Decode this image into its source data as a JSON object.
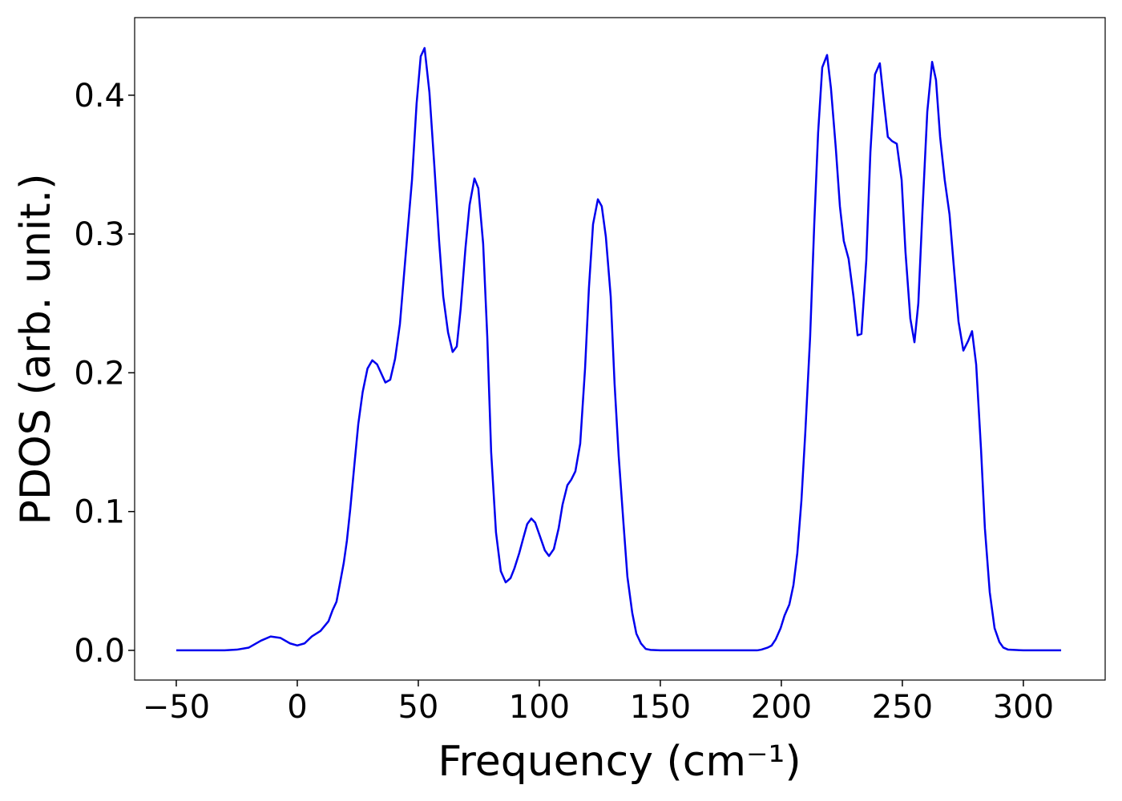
{
  "chart_data": {
    "type": "line",
    "x_label": "Frequency (cm⁻¹)",
    "y_label": "PDOS (arb. unit.)",
    "x": [
      -50,
      -40,
      -30,
      -25,
      -20,
      -15,
      -11,
      -7,
      -3,
      0,
      3,
      6,
      9.6,
      12.9,
      14.6,
      16.2,
      17.5,
      19.2,
      20.5,
      21.9,
      23.5,
      25.2,
      27,
      29,
      31,
      33,
      36.4,
      38.4,
      40.4,
      42.4,
      45.4,
      47.4,
      49.3,
      51,
      52.6,
      54.6,
      56.6,
      58.6,
      60.3,
      62.3,
      64.2,
      65.9,
      67.5,
      69.5,
      71.2,
      73.2,
      74.8,
      76.8,
      78.5,
      80.1,
      82.1,
      84.1,
      86.1,
      88.1,
      89.7,
      91.7,
      93.4,
      95,
      96.7,
      98.3,
      100.3,
      102.3,
      104,
      106,
      108,
      109.6,
      111.6,
      113.2,
      114.9,
      116.9,
      118.9,
      120.5,
      122.2,
      124.2,
      125.8,
      127.5,
      129.5,
      131.1,
      132.8,
      134.8,
      136.4,
      138.4,
      140.1,
      142,
      144,
      146,
      150,
      170,
      190,
      191.7,
      194.4,
      196,
      197.7,
      199.7,
      201.3,
      203.3,
      205,
      206.6,
      208.3,
      209.9,
      211.9,
      213.6,
      215.2,
      216.9,
      218.9,
      220.5,
      222.5,
      224.2,
      225.8,
      227.8,
      229.8,
      231.5,
      233.1,
      235.1,
      236.8,
      238.7,
      240.7,
      242.4,
      244,
      245.7,
      247.7,
      249.7,
      251.3,
      253.3,
      255,
      256.6,
      258.3,
      260.3,
      262.3,
      263.9,
      265.6,
      267.5,
      269.5,
      271.2,
      273.2,
      275.2,
      277.2,
      278.8,
      280.5,
      282.5,
      284.1,
      286.1,
      288.1,
      290.1,
      291.7,
      293.7,
      300,
      315.6
    ],
    "series": [
      {
        "name": "PDOS",
        "color": "#0000ee",
        "values": [
          0,
          0,
          0,
          0.0005,
          0.002,
          0.007,
          0.01,
          0.009,
          0.005,
          0.0035,
          0.005,
          0.01,
          0.014,
          0.021,
          0.029,
          0.035,
          0.047,
          0.063,
          0.079,
          0.102,
          0.132,
          0.163,
          0.186,
          0.203,
          0.209,
          0.206,
          0.193,
          0.195,
          0.21,
          0.235,
          0.298,
          0.339,
          0.394,
          0.428,
          0.434,
          0.402,
          0.35,
          0.295,
          0.255,
          0.229,
          0.215,
          0.219,
          0.246,
          0.29,
          0.321,
          0.34,
          0.333,
          0.293,
          0.226,
          0.143,
          0.085,
          0.057,
          0.049,
          0.052,
          0.059,
          0.07,
          0.081,
          0.091,
          0.095,
          0.092,
          0.082,
          0.072,
          0.068,
          0.073,
          0.088,
          0.105,
          0.119,
          0.123,
          0.129,
          0.149,
          0.203,
          0.261,
          0.307,
          0.325,
          0.32,
          0.298,
          0.255,
          0.192,
          0.14,
          0.091,
          0.053,
          0.027,
          0.012,
          0.005,
          0.001,
          0.0003,
          0,
          0,
          0,
          0.0005,
          0.002,
          0.0035,
          0.008,
          0.016,
          0.025,
          0.033,
          0.047,
          0.07,
          0.108,
          0.157,
          0.226,
          0.307,
          0.373,
          0.42,
          0.429,
          0.405,
          0.362,
          0.32,
          0.295,
          0.282,
          0.255,
          0.227,
          0.228,
          0.281,
          0.359,
          0.415,
          0.423,
          0.395,
          0.37,
          0.367,
          0.365,
          0.339,
          0.287,
          0.239,
          0.222,
          0.25,
          0.316,
          0.388,
          0.424,
          0.411,
          0.37,
          0.339,
          0.314,
          0.278,
          0.237,
          0.216,
          0.223,
          0.23,
          0.206,
          0.145,
          0.088,
          0.042,
          0.016,
          0.006,
          0.002,
          0.0005,
          0,
          0
        ]
      }
    ],
    "xlim": [
      -67.2,
      333.8
    ],
    "ylim": [
      -0.0214,
      0.4559
    ],
    "xticks": [
      {
        "value": -50,
        "label": "−50"
      },
      0,
      50,
      100,
      150,
      200,
      250,
      300
    ],
    "yticks": [
      {
        "value": 0,
        "label": "0.0"
      },
      {
        "value": 0.1,
        "label": "0.1"
      },
      {
        "value": 0.2,
        "label": "0.2"
      },
      {
        "value": 0.3,
        "label": "0.3"
      },
      {
        "value": 0.4,
        "label": "0.4"
      }
    ],
    "grid": false
  }
}
